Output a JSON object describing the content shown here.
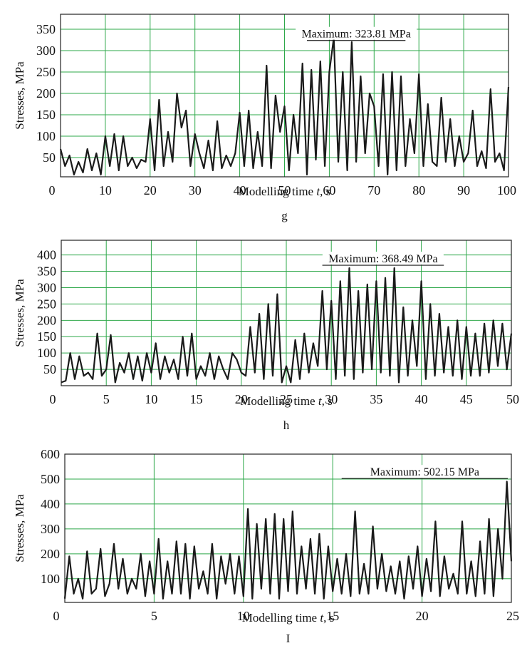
{
  "colors": {
    "grid": "#2ea84a",
    "line": "#1a1a1a",
    "frame": "#222222",
    "background": "#ffffff"
  },
  "chart_data": [
    {
      "type": "line",
      "panel_label": "g",
      "xlabel_prefix": "Modelling time ",
      "xlabel_var": "t",
      "xlabel_suffix": ", s",
      "ylabel": "Stresses, MPa",
      "xlim": [
        0,
        100
      ],
      "ylim": [
        5,
        385
      ],
      "xticks": [
        0,
        10,
        20,
        30,
        40,
        50,
        60,
        70,
        80,
        90,
        100
      ],
      "yticks": [
        50,
        100,
        150,
        200,
        250,
        300,
        350
      ],
      "grid": true,
      "annotation": {
        "text": "Maximum: 323.81 MPa",
        "x_start": 55,
        "x_end": 77,
        "y": 323.81
      },
      "series": [
        {
          "x": [
            0,
            1,
            2,
            3,
            4,
            5,
            6,
            7,
            8,
            9,
            10,
            11,
            12,
            13,
            14,
            15,
            16,
            17,
            18,
            19,
            20,
            21,
            22,
            23,
            24,
            25,
            26,
            27,
            28,
            29,
            30,
            31,
            32,
            33,
            34,
            35,
            36,
            37,
            38,
            39,
            40,
            41,
            42,
            43,
            44,
            45,
            46,
            47,
            48,
            49,
            50,
            51,
            52,
            53,
            54,
            55,
            56,
            57,
            58,
            59,
            60,
            61,
            62,
            63,
            64,
            65,
            66,
            67,
            68,
            69,
            70,
            71,
            72,
            73,
            74,
            75,
            76,
            77,
            78,
            79,
            80,
            81,
            82,
            83,
            84,
            85,
            86,
            87,
            88,
            89,
            90,
            91,
            92,
            93,
            94,
            95,
            96,
            97,
            98,
            99,
            100
          ],
          "values": [
            70,
            30,
            55,
            10,
            40,
            15,
            70,
            20,
            60,
            10,
            100,
            30,
            105,
            20,
            100,
            30,
            50,
            25,
            45,
            40,
            140,
            20,
            185,
            30,
            110,
            40,
            200,
            120,
            160,
            30,
            105,
            60,
            25,
            90,
            20,
            135,
            25,
            55,
            30,
            60,
            155,
            30,
            160,
            25,
            110,
            30,
            265,
            25,
            195,
            110,
            170,
            20,
            150,
            60,
            270,
            10,
            255,
            45,
            275,
            30,
            250,
            330,
            40,
            250,
            20,
            320,
            40,
            240,
            60,
            200,
            170,
            30,
            245,
            10,
            250,
            20,
            240,
            30,
            140,
            60,
            245,
            30,
            175,
            40,
            30,
            190,
            40,
            140,
            30,
            100,
            40,
            60,
            160,
            30,
            65,
            25,
            210,
            40,
            60,
            20,
            215
          ]
        }
      ]
    },
    {
      "type": "line",
      "panel_label": "h",
      "xlabel_prefix": "Modelling time ",
      "xlabel_var": "t",
      "xlabel_suffix": ", s",
      "ylabel": "Stresses, MPa",
      "xlim": [
        0,
        50
      ],
      "ylim": [
        0,
        445
      ],
      "xticks": [
        0,
        5,
        10,
        15,
        20,
        25,
        30,
        35,
        40,
        45,
        50
      ],
      "yticks": [
        50,
        100,
        150,
        200,
        250,
        300,
        350,
        400
      ],
      "grid": true,
      "annotation": {
        "text": "Maximum: 368.49 MPa",
        "x_start": 29,
        "x_end": 42.5,
        "y": 368.49
      },
      "series": [
        {
          "x": [
            0,
            0.5,
            1,
            1.5,
            2,
            2.5,
            3,
            3.5,
            4,
            4.5,
            5,
            5.5,
            6,
            6.5,
            7,
            7.5,
            8,
            8.5,
            9,
            9.5,
            10,
            10.5,
            11,
            11.5,
            12,
            12.5,
            13,
            13.5,
            14,
            14.5,
            15,
            15.5,
            16,
            16.5,
            17,
            17.5,
            18,
            18.5,
            19,
            19.5,
            20,
            20.5,
            21,
            21.5,
            22,
            22.5,
            23,
            23.5,
            24,
            24.5,
            25,
            25.5,
            26,
            26.5,
            27,
            27.5,
            28,
            28.5,
            29,
            29.5,
            30,
            30.5,
            31,
            31.5,
            32,
            32.5,
            33,
            33.5,
            34,
            34.5,
            35,
            35.5,
            36,
            36.5,
            37,
            37.5,
            38,
            38.5,
            39,
            39.5,
            40,
            40.5,
            41,
            41.5,
            42,
            42.5,
            43,
            43.5,
            44,
            44.5,
            45,
            45.5,
            46,
            46.5,
            47,
            47.5,
            48,
            48.5,
            49,
            49.5,
            50
          ],
          "values": [
            10,
            15,
            100,
            20,
            90,
            30,
            40,
            20,
            160,
            30,
            50,
            155,
            10,
            70,
            40,
            100,
            20,
            90,
            15,
            100,
            40,
            130,
            20,
            90,
            40,
            80,
            20,
            150,
            30,
            160,
            20,
            60,
            30,
            100,
            20,
            90,
            50,
            20,
            100,
            80,
            40,
            30,
            180,
            40,
            220,
            20,
            250,
            30,
            280,
            10,
            60,
            10,
            140,
            20,
            160,
            40,
            130,
            60,
            290,
            50,
            260,
            20,
            320,
            30,
            360,
            20,
            290,
            40,
            310,
            50,
            320,
            40,
            330,
            30,
            360,
            10,
            240,
            30,
            200,
            60,
            320,
            20,
            250,
            30,
            220,
            40,
            180,
            30,
            200,
            20,
            180,
            30,
            160,
            30,
            190,
            40,
            200,
            60,
            190,
            50,
            160
          ]
        }
      ]
    },
    {
      "type": "line",
      "panel_label": "I",
      "xlabel_prefix": "Modelling time ",
      "xlabel_var": "t",
      "xlabel_suffix": ", s",
      "ylabel": "Stresses, MPa",
      "xlim": [
        0,
        25
      ],
      "ylim": [
        5,
        600
      ],
      "xticks": [
        0,
        5,
        10,
        15,
        20,
        25
      ],
      "yticks": [
        100,
        200,
        300,
        400,
        500,
        600
      ],
      "grid": true,
      "annotation": {
        "text": "Maximum: 502.15 MPa",
        "x_start": 15.5,
        "x_end": 24.8,
        "y": 502.15
      },
      "series": [
        {
          "x": [
            0,
            0.25,
            0.5,
            0.75,
            1,
            1.25,
            1.5,
            1.75,
            2,
            2.25,
            2.5,
            2.75,
            3,
            3.25,
            3.5,
            3.75,
            4,
            4.25,
            4.5,
            4.75,
            5,
            5.25,
            5.5,
            5.75,
            6,
            6.25,
            6.5,
            6.75,
            7,
            7.25,
            7.5,
            7.75,
            8,
            8.25,
            8.5,
            8.75,
            9,
            9.25,
            9.5,
            9.75,
            10,
            10.25,
            10.5,
            10.75,
            11,
            11.25,
            11.5,
            11.75,
            12,
            12.25,
            12.5,
            12.75,
            13,
            13.25,
            13.5,
            13.75,
            14,
            14.25,
            14.5,
            14.75,
            15,
            15.25,
            15.5,
            15.75,
            16,
            16.25,
            16.5,
            16.75,
            17,
            17.25,
            17.5,
            17.75,
            18,
            18.25,
            18.5,
            18.75,
            19,
            19.25,
            19.5,
            19.75,
            20,
            20.25,
            20.5,
            20.75,
            21,
            21.25,
            21.5,
            21.75,
            22,
            22.25,
            22.5,
            22.75,
            23,
            23.25,
            23.5,
            23.75,
            24,
            24.25,
            24.5,
            24.75,
            25
          ],
          "values": [
            20,
            190,
            40,
            100,
            20,
            210,
            40,
            60,
            220,
            30,
            80,
            240,
            60,
            180,
            40,
            100,
            60,
            200,
            30,
            170,
            40,
            260,
            20,
            170,
            40,
            250,
            40,
            240,
            20,
            230,
            60,
            130,
            40,
            240,
            20,
            190,
            80,
            200,
            40,
            190,
            30,
            380,
            20,
            320,
            60,
            340,
            40,
            360,
            20,
            340,
            50,
            370,
            40,
            230,
            60,
            260,
            40,
            280,
            20,
            230,
            50,
            180,
            40,
            200,
            30,
            370,
            40,
            160,
            40,
            310,
            60,
            200,
            50,
            150,
            40,
            170,
            20,
            190,
            60,
            230,
            30,
            180,
            50,
            330,
            30,
            190,
            60,
            120,
            40,
            330,
            40,
            170,
            30,
            250,
            40,
            340,
            30,
            300,
            100,
            490,
            170
          ]
        }
      ]
    }
  ]
}
